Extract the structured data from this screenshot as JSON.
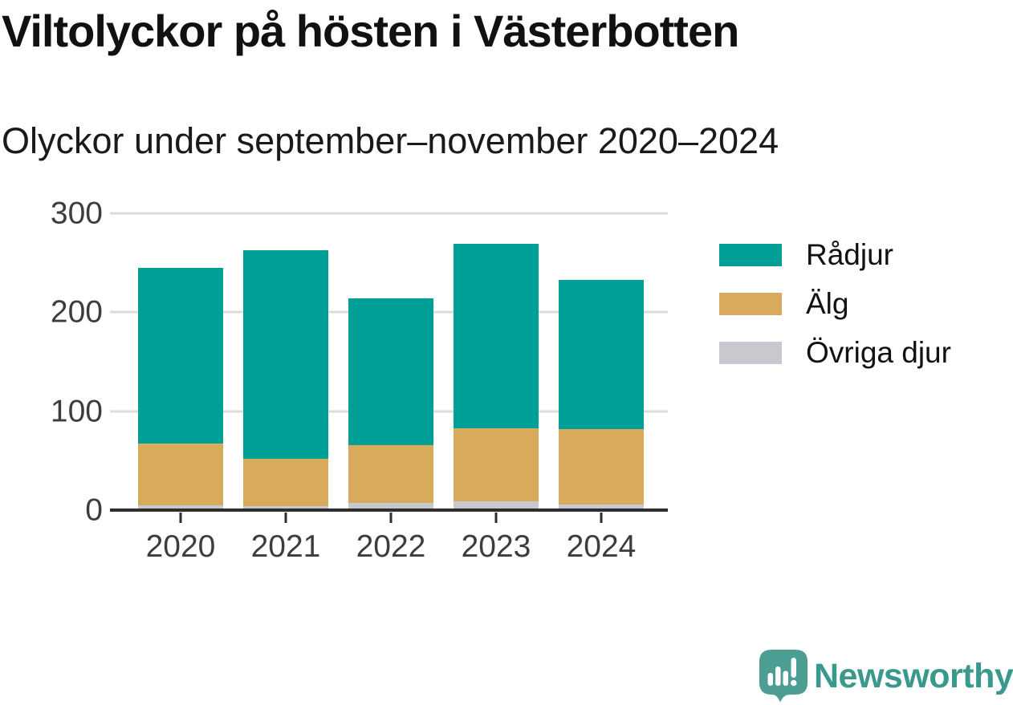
{
  "title": "Viltolyckor på hösten i Västerbotten",
  "subtitle": "Olyckor under september–november 2020–2024",
  "colors": {
    "background": "#ffffff",
    "title_text": "#111111",
    "axis_text": "#3d3d3d",
    "gridline": "#dcdcdc",
    "axis_line": "#2e2e2e",
    "radjur": "#00A099",
    "alg": "#D8AB5C",
    "ovriga_djur": "#C9C8CF",
    "logo_icon": "#4C9E93",
    "logo_text": "#3A988C"
  },
  "chart_data": {
    "type": "bar",
    "stacked": true,
    "title": "Viltolyckor på hösten i Västerbotten",
    "subtitle": "Olyckor under september–november 2020–2024",
    "categories": [
      "2020",
      "2021",
      "2022",
      "2023",
      "2024"
    ],
    "series": [
      {
        "name": "Rådjur",
        "color": "#00A099",
        "values": [
          178,
          211,
          148,
          186,
          151
        ]
      },
      {
        "name": "Älg",
        "color": "#D8AB5C",
        "values": [
          62,
          48,
          59,
          74,
          76
        ]
      },
      {
        "name": "Övriga djur",
        "color": "#C9C8CF",
        "values": [
          5,
          4,
          7,
          9,
          6
        ]
      }
    ],
    "stack_order_bottom_to_top": [
      "Övriga djur",
      "Älg",
      "Rådjur"
    ],
    "totals": [
      245,
      263,
      214,
      269,
      233
    ],
    "xlabel": "",
    "ylabel": "",
    "ylim": [
      0,
      300
    ],
    "yticks": [
      0,
      100,
      200,
      300
    ],
    "grid": true,
    "legend_position": "right"
  },
  "legend": {
    "items": [
      {
        "label": "Rådjur"
      },
      {
        "label": "Älg"
      },
      {
        "label": "Övriga djur"
      }
    ]
  },
  "logo": {
    "text": "Newsworthy"
  }
}
